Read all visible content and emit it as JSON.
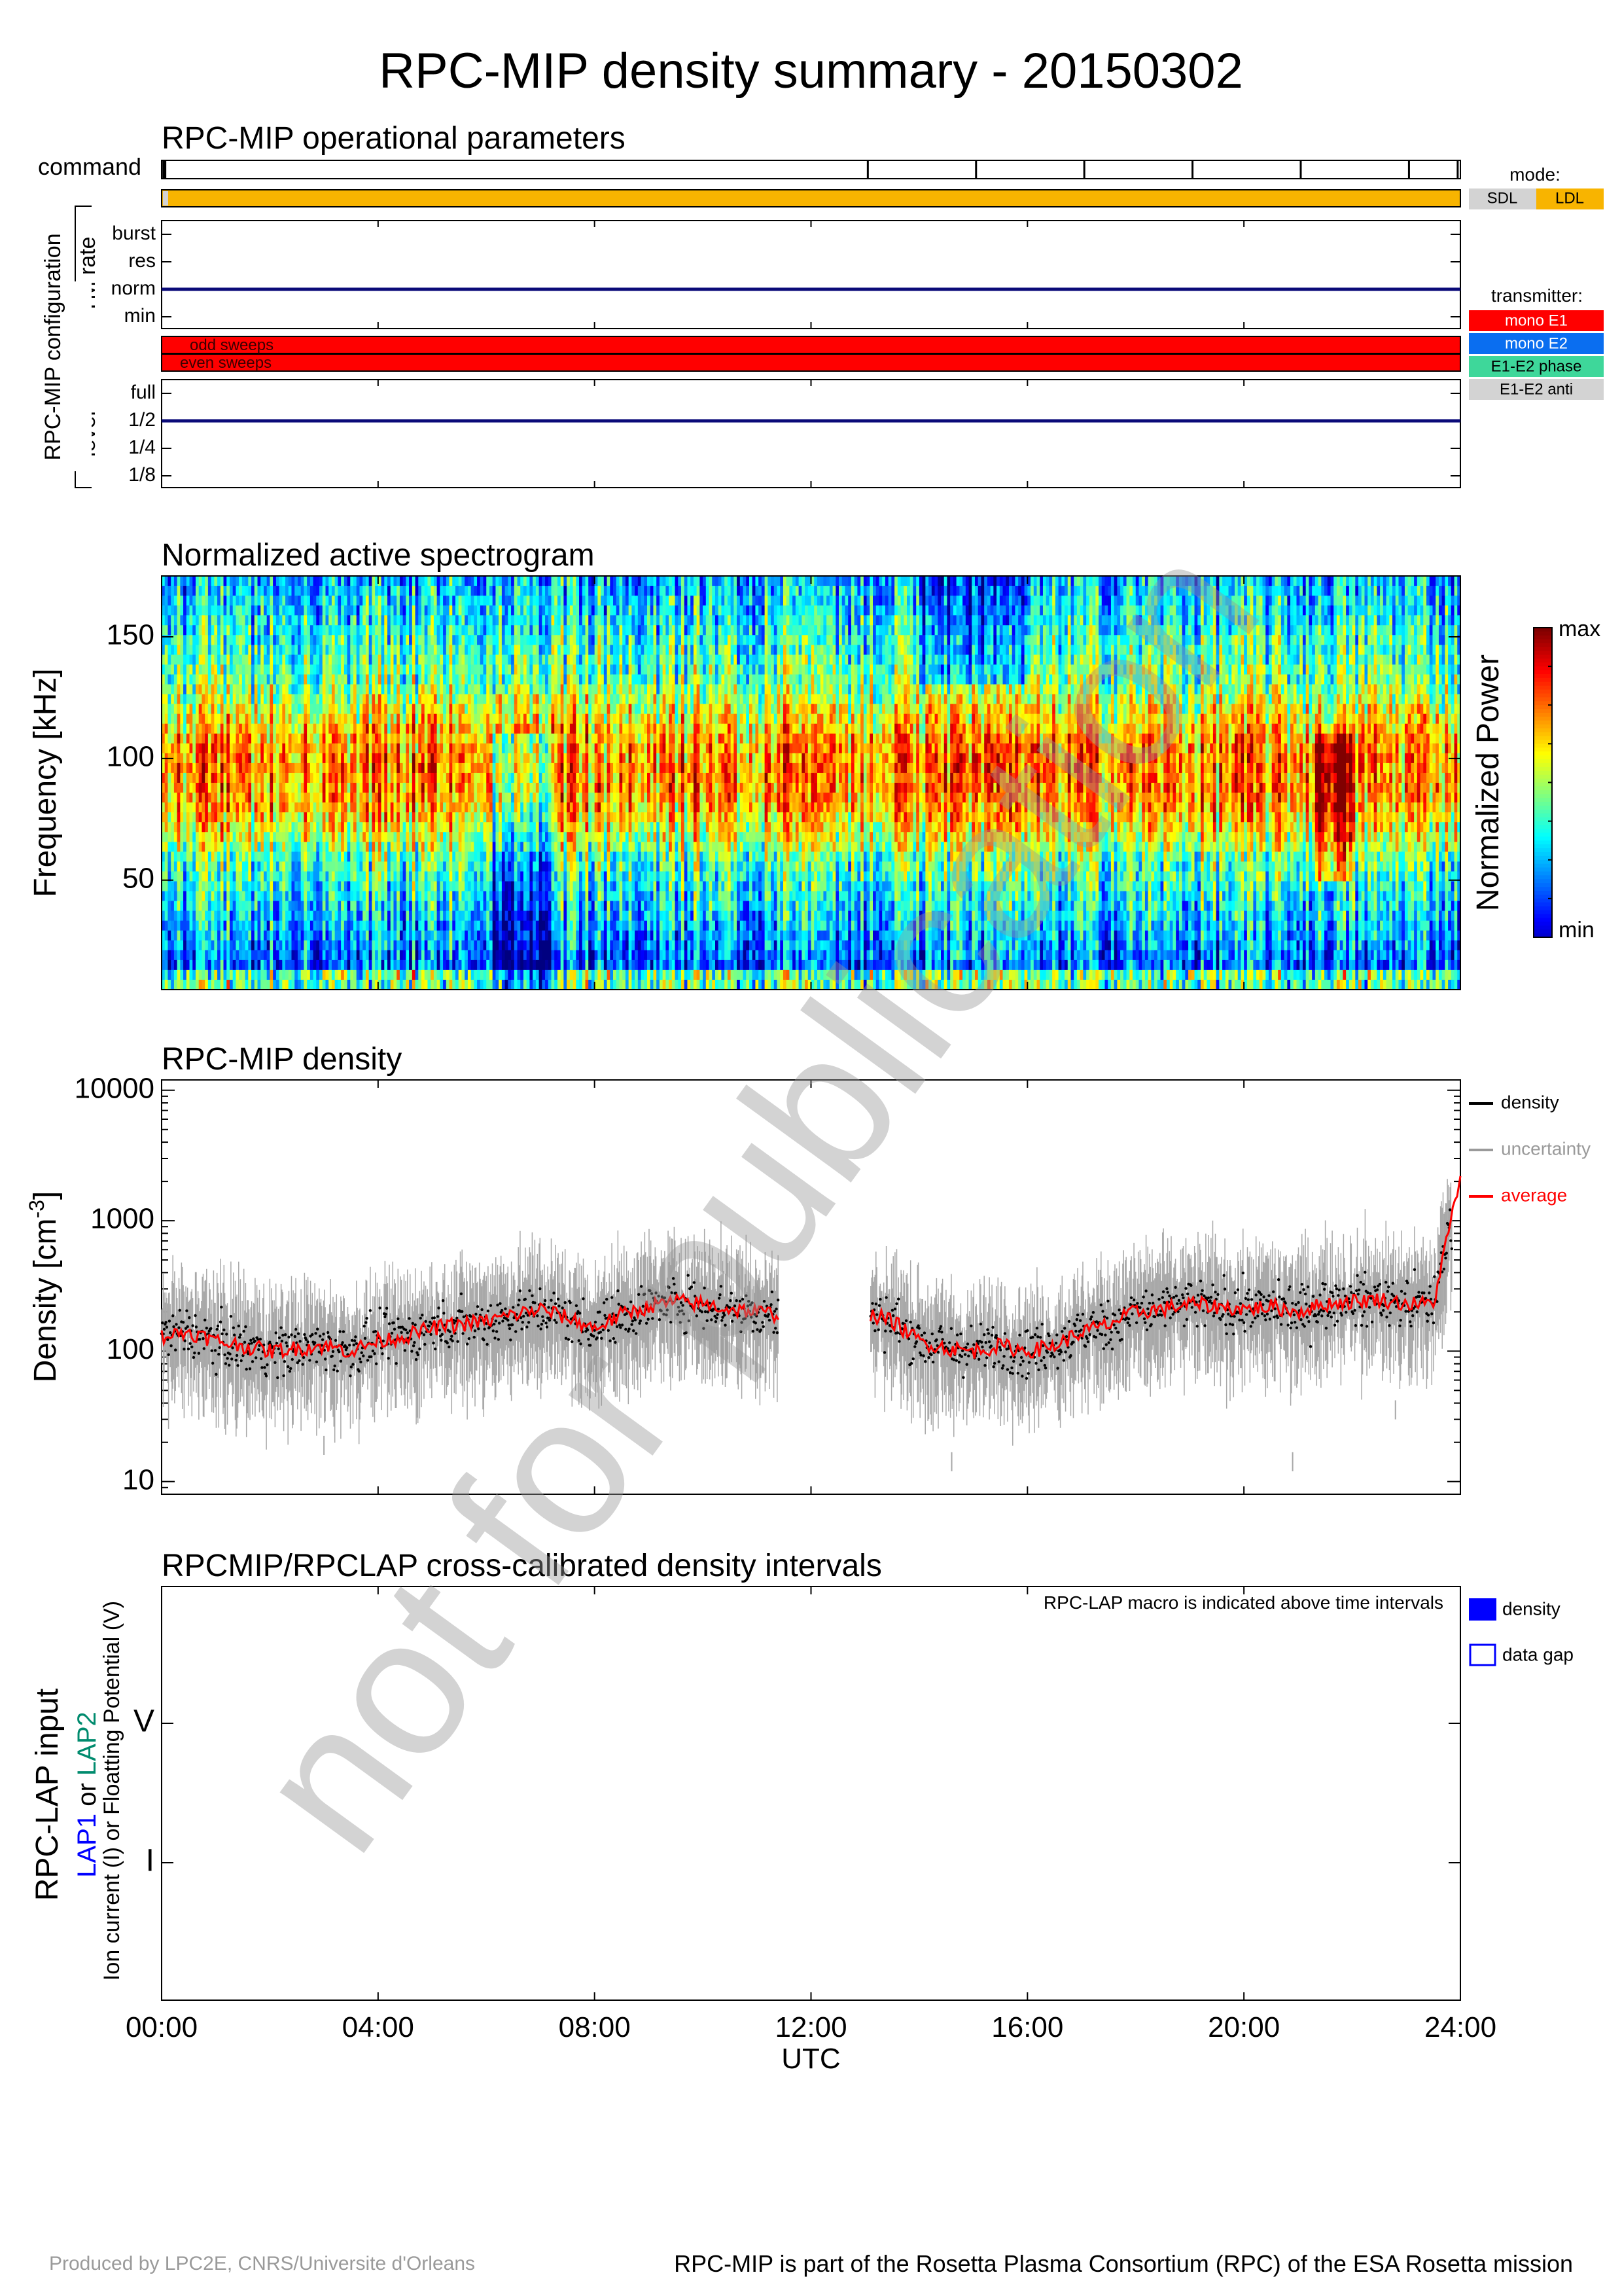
{
  "title": "RPC-MIP density summary - 20150302",
  "operational": {
    "heading": "RPC-MIP operational parameters",
    "command_label": "command",
    "config_label": "RPC-MIP configuration",
    "tm_rate_label": "TM rate",
    "tm_rate_levels": [
      "burst",
      "res",
      "norm",
      "min"
    ],
    "tm_rate_value": "norm",
    "sweeps": [
      "odd sweeps",
      "even sweeps"
    ],
    "level_label": "level",
    "level_levels": [
      "full",
      "1/2",
      "1/4",
      "1/8"
    ],
    "level_value": "1/2",
    "mode_legend": {
      "title": "mode:",
      "items": [
        {
          "label": "SDL",
          "color": "#d3d3d3"
        },
        {
          "label": "LDL",
          "color": "#f8b400"
        }
      ]
    },
    "transmitter_legend": {
      "title": "transmitter:",
      "items": [
        {
          "label": "mono E1",
          "color": "#ff0000",
          "text_color": "#ffffff"
        },
        {
          "label": "mono E2",
          "color": "#0a6ef0",
          "text_color": "#ffffff"
        },
        {
          "label": "E1-E2 phase",
          "color": "#3ed79a",
          "text_color": "#000000"
        },
        {
          "label": "E1-E2 anti",
          "color": "#d3d3d3",
          "text_color": "#000000"
        }
      ]
    },
    "command_ticks_hours": [
      0.05,
      13.05,
      15.05,
      17.05,
      19.05,
      21.05,
      23.05,
      23.95
    ],
    "mode_color": "#f8b400",
    "sweep_color": "#ff0000"
  },
  "spectrogram": {
    "heading": "Normalized active spectrogram",
    "ylabel": "Frequency [kHz]",
    "yticks": [
      50,
      100,
      150
    ],
    "ylim": [
      5,
      175
    ],
    "colorbar_label": "Normalized Power",
    "colorbar_max": "max",
    "colorbar_min": "min"
  },
  "density": {
    "heading": "RPC-MIP density",
    "ylabel": "Density [cm-3]",
    "ylabel_base": "Density [cm",
    "ylabel_exp": "-3",
    "ylabel_close": "]",
    "ytick_labels": [
      "10000",
      "1000",
      "100",
      "10"
    ],
    "legend": [
      {
        "label": "density",
        "color": "#000000"
      },
      {
        "label": "uncertainty",
        "color": "#9a9a9a"
      },
      {
        "label": "average",
        "color": "#ff0000"
      }
    ]
  },
  "chart_data": [
    {
      "type": "line",
      "title": "RPC-MIP density",
      "xlabel": "UTC",
      "ylabel": "Density [cm-3]",
      "scale_y": "log",
      "xlim": [
        0,
        24
      ],
      "ylim": [
        8,
        12000
      ],
      "x_unit": "hours UTC",
      "grid": false,
      "legend_position": "right",
      "gap": [
        11.4,
        13.1
      ],
      "series": [
        {
          "name": "average",
          "color": "#ff0000",
          "x": [
            0.0,
            0.5,
            1.0,
            1.5,
            2.0,
            2.5,
            3.0,
            3.5,
            4.0,
            4.5,
            5.0,
            5.5,
            6.0,
            6.5,
            7.0,
            7.5,
            8.0,
            8.5,
            9.0,
            9.5,
            10.0,
            10.5,
            11.0,
            11.4,
            13.1,
            13.5,
            14.0,
            14.5,
            15.0,
            15.5,
            16.0,
            16.5,
            17.0,
            17.5,
            18.0,
            18.5,
            19.0,
            19.5,
            20.0,
            20.5,
            21.0,
            21.5,
            22.0,
            22.5,
            23.0,
            23.5,
            24.0
          ],
          "y": [
            130,
            140,
            120,
            110,
            100,
            105,
            110,
            100,
            120,
            130,
            150,
            160,
            170,
            190,
            210,
            180,
            150,
            190,
            220,
            240,
            230,
            210,
            200,
            190,
            190,
            170,
            120,
            105,
            100,
            110,
            100,
            110,
            140,
            160,
            200,
            210,
            230,
            220,
            210,
            220,
            200,
            230,
            240,
            250,
            230,
            230,
            2200
          ]
        }
      ]
    },
    {
      "type": "heatmap",
      "title": "Normalized active spectrogram",
      "xlabel": "UTC",
      "ylabel": "Frequency [kHz]",
      "xlim": [
        0,
        24
      ],
      "ylim": [
        5,
        175
      ],
      "colorbar": "Normalized Power"
    }
  ],
  "lap": {
    "heading": "RPCMIP/RPCLAP cross-calibrated density intervals",
    "note": "RPC-LAP macro is indicated above time intervals",
    "ylabel_main": "RPC-LAP input",
    "ylabel_lap1": "LAP1",
    "ylabel_or": " or ",
    "ylabel_lap2": "LAP2",
    "ylabel_sub": "Ion current (I) or Floatting Potential (V)",
    "yticks": [
      "V",
      "I"
    ],
    "legend": [
      {
        "label": "density"
      },
      {
        "label": "data gap"
      }
    ],
    "lap1_color": "#0000ff",
    "lap2_color": "#008b6e"
  },
  "xaxis": {
    "ticks": [
      "00:00",
      "04:00",
      "08:00",
      "12:00",
      "16:00",
      "20:00",
      "24:00"
    ],
    "label": "UTC"
  },
  "watermark": "not for publication",
  "footer": {
    "left": "Produced by LPC2E, CNRS/Universite d'Orleans",
    "right": "RPC-MIP is part of the Rosetta Plasma Consortium (RPC) of the ESA Rosetta mission"
  }
}
